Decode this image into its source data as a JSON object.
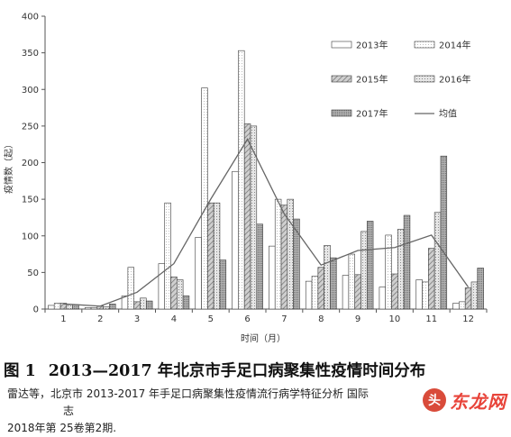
{
  "chart_data": {
    "type": "bar",
    "xlabel": "时间（月）",
    "ylabel": "疫情数（起）",
    "ylim": [
      0,
      400
    ],
    "yticks": [
      0,
      50,
      100,
      150,
      200,
      250,
      300,
      350,
      400
    ],
    "categories": [
      "1",
      "2",
      "3",
      "4",
      "5",
      "6",
      "7",
      "8",
      "9",
      "10",
      "11",
      "12"
    ],
    "series": [
      {
        "name": "2013年",
        "values": [
          5,
          2,
          18,
          62,
          98,
          188,
          86,
          38,
          46,
          30,
          40,
          8
        ],
        "fill": "#ffffff",
        "pattern": "none"
      },
      {
        "name": "2014年",
        "values": [
          8,
          2,
          57,
          145,
          302,
          353,
          150,
          45,
          75,
          101,
          37,
          10
        ],
        "fill": "#ffffff",
        "pattern": "light"
      },
      {
        "name": "2015年",
        "values": [
          8,
          4,
          10,
          44,
          145,
          253,
          142,
          57,
          47,
          48,
          83,
          29
        ],
        "fill": "#c9c9c9",
        "pattern": "diag"
      },
      {
        "name": "2016年",
        "values": [
          6,
          3,
          15,
          40,
          145,
          250,
          150,
          87,
          106,
          109,
          132,
          37
        ],
        "fill": "#dadada",
        "pattern": "dots"
      },
      {
        "name": "2017年",
        "values": [
          6,
          7,
          11,
          18,
          67,
          116,
          123,
          70,
          120,
          128,
          209,
          56
        ],
        "fill": "#a4a4a4",
        "pattern": "fine"
      }
    ],
    "line": {
      "name": "均值",
      "values": [
        7,
        4,
        23,
        62,
        150,
        232,
        130,
        60,
        80,
        84,
        101,
        30
      ],
      "color": "#666666"
    },
    "legend_position": "top-right",
    "grid": false
  },
  "caption": {
    "figure_label": "图 1",
    "title": "2013—2017 年北京市手足口病聚集性疫情时间分布"
  },
  "source": {
    "line1": "雷达等，北京市 2013-2017 年手足口病聚集性疫情流行病学特征分析 国际",
    "line1_end": "志",
    "line2": "2018年第 25卷第2期."
  },
  "watermark": {
    "badge": "头",
    "text": "东龙网"
  }
}
